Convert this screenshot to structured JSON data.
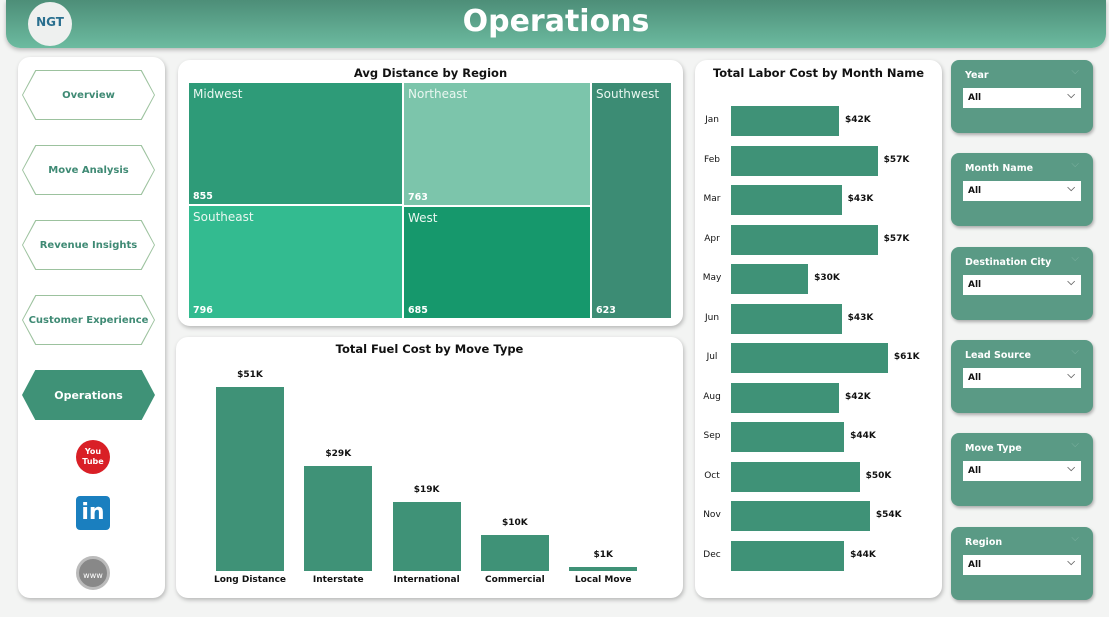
{
  "header": {
    "title": "Operations",
    "logo_text": "NGT"
  },
  "nav": {
    "items": [
      {
        "label": "Overview",
        "active": false
      },
      {
        "label": "Move Analysis",
        "active": false
      },
      {
        "label": "Revenue Insights",
        "active": false
      },
      {
        "label": "Customer Experience",
        "active": false
      },
      {
        "label": "Operations",
        "active": true
      }
    ],
    "social": [
      {
        "icon": "youtube-icon",
        "label": "You Tube"
      },
      {
        "icon": "linkedin-icon",
        "label": "in"
      },
      {
        "icon": "globe-icon",
        "label": "www"
      }
    ]
  },
  "colors": {
    "accent": "#3f9277",
    "slicer": "#5a9a85",
    "header": "#5aa58c"
  },
  "chart_data": [
    {
      "type": "treemap",
      "title": "Avg Distance by Region",
      "categories": [
        "Midwest",
        "Southeast",
        "Northeast",
        "West",
        "Southwest"
      ],
      "values": [
        855,
        796,
        763,
        685,
        623
      ],
      "labels": [
        "855",
        "796",
        "763",
        "685",
        "623"
      ],
      "colors": [
        "#2e9b78",
        "#33bb90",
        "#7cc5ab",
        "#16986c",
        "#3c8c74"
      ]
    },
    {
      "type": "bar",
      "title": "Total Fuel Cost by Move Type",
      "categories": [
        "Long Distance",
        "Interstate",
        "International",
        "Commercial",
        "Local Move"
      ],
      "values": [
        51,
        29,
        19,
        10,
        1
      ],
      "labels": [
        "$51K",
        "$29K",
        "$19K",
        "$10K",
        "$1K"
      ],
      "unit": "K USD"
    },
    {
      "type": "bar",
      "orientation": "horizontal",
      "title": "Total Labor Cost by Month Name",
      "categories": [
        "Jan",
        "Feb",
        "Mar",
        "Apr",
        "May",
        "Jun",
        "Jul",
        "Aug",
        "Sep",
        "Oct",
        "Nov",
        "Dec"
      ],
      "values": [
        42,
        57,
        43,
        57,
        30,
        43,
        61,
        42,
        44,
        50,
        54,
        44
      ],
      "labels": [
        "$42K",
        "$57K",
        "$43K",
        "$57K",
        "$30K",
        "$43K",
        "$61K",
        "$42K",
        "$44K",
        "$50K",
        "$54K",
        "$44K"
      ],
      "unit": "K USD"
    }
  ],
  "slicers": [
    {
      "title": "Year",
      "value": "All"
    },
    {
      "title": "Month Name",
      "value": "All"
    },
    {
      "title": "Destination City",
      "value": "All"
    },
    {
      "title": "Lead Source",
      "value": "All"
    },
    {
      "title": "Move Type",
      "value": "All"
    },
    {
      "title": "Region",
      "value": "All"
    }
  ]
}
